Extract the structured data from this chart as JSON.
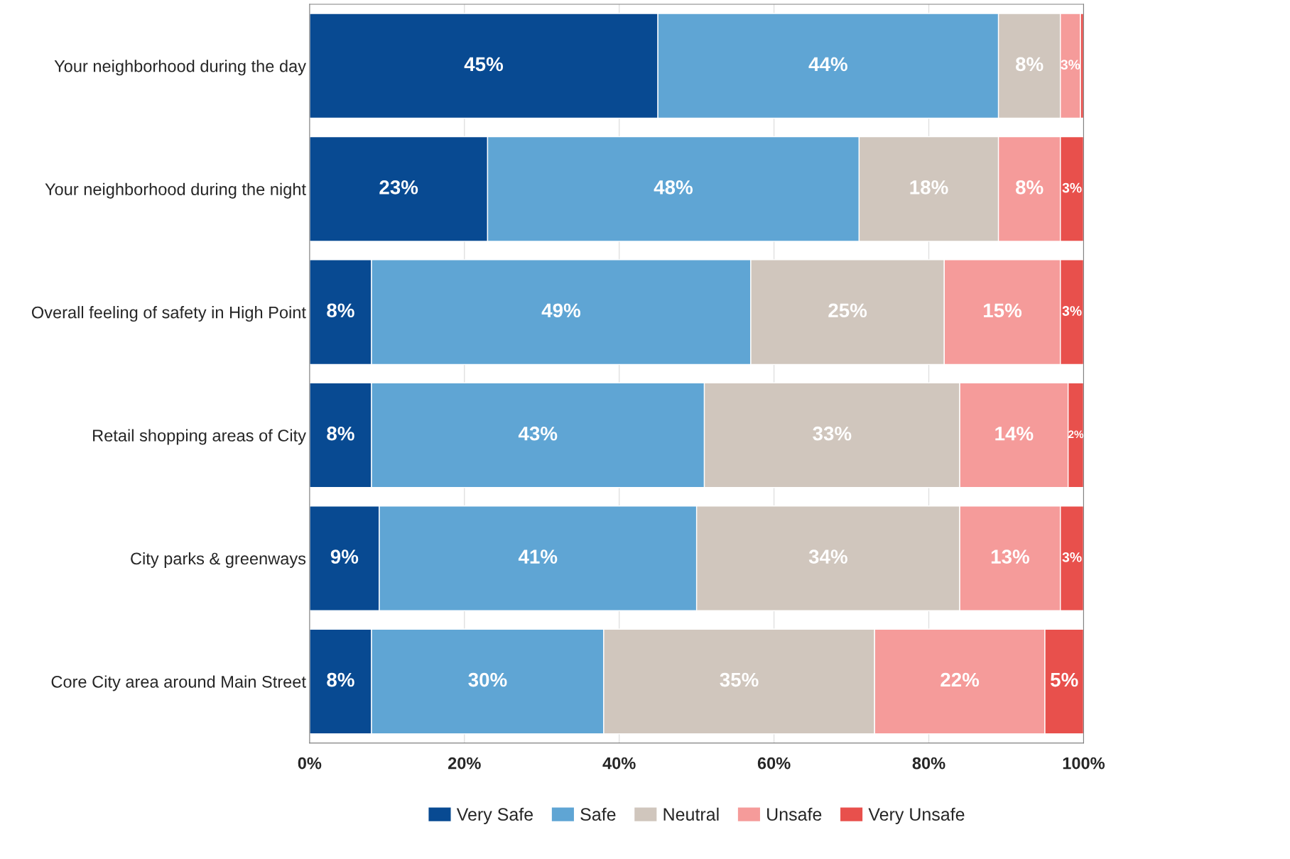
{
  "chart_data": {
    "type": "bar",
    "orientation": "horizontal",
    "stacked": true,
    "categories": [
      "Your neighborhood during the day",
      "Your neighborhood during the night",
      "Overall feeling of safety in High Point",
      "Retail shopping areas of City",
      "City parks & greenways",
      "Core City area around Main Street"
    ],
    "series": [
      {
        "name": "Very Safe",
        "color": "#084a92",
        "values": [
          45,
          23,
          8,
          8,
          9,
          8
        ],
        "value_labels": [
          "45%",
          "23%",
          "8%",
          "8%",
          "9%",
          "8%"
        ]
      },
      {
        "name": "Safe",
        "color": "#5fa5d4",
        "values": [
          44,
          48,
          49,
          43,
          41,
          30
        ],
        "value_labels": [
          "44%",
          "48%",
          "49%",
          "43%",
          "41%",
          "30%"
        ]
      },
      {
        "name": "Neutral",
        "color": "#d0c6bd",
        "values": [
          8,
          18,
          25,
          33,
          34,
          35
        ],
        "value_labels": [
          "8%",
          "18%",
          "25%",
          "33%",
          "34%",
          "35%"
        ]
      },
      {
        "name": "Unsafe",
        "color": "#f59b9a",
        "values": [
          2.6,
          8,
          15,
          14,
          13,
          22
        ],
        "value_labels": [
          "3%",
          "8%",
          "15%",
          "14%",
          "13%",
          "22%"
        ]
      },
      {
        "name": "Very Unsafe",
        "color": "#e8504c",
        "values": [
          0.4,
          3,
          3,
          2,
          3,
          5
        ],
        "value_labels": [
          null,
          "3%",
          "3%",
          "2%",
          "3%",
          "5%"
        ]
      }
    ],
    "xlim": [
      0,
      100
    ],
    "xticks": [
      {
        "value": 0,
        "label": "0%"
      },
      {
        "value": 20,
        "label": "20%"
      },
      {
        "value": 40,
        "label": "40%"
      },
      {
        "value": 60,
        "label": "60%"
      },
      {
        "value": 80,
        "label": "80%"
      },
      {
        "value": 100,
        "label": "100%"
      }
    ],
    "grid": "x",
    "legend": "bottom"
  }
}
